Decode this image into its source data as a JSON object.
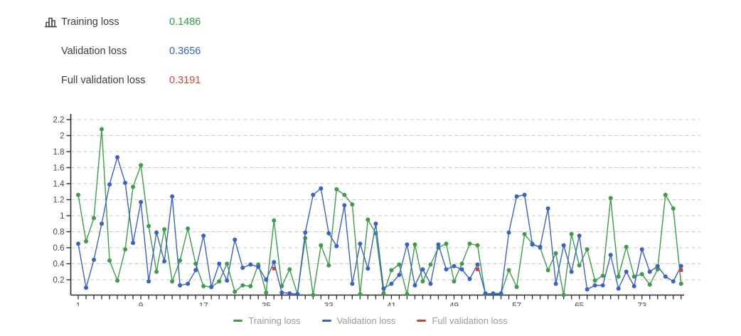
{
  "header": {
    "metrics": [
      {
        "label": "Training loss",
        "value": "0.1486",
        "color": "#2f9e44"
      },
      {
        "label": "Validation loss",
        "value": "0.3656",
        "color": "#3a5fc8"
      },
      {
        "label": "Full validation loss",
        "value": "0.3191",
        "color": "#d14836"
      }
    ]
  },
  "legend": {
    "items": [
      {
        "label": "Training loss",
        "color": "#3f9c4a"
      },
      {
        "label": "Validation loss",
        "color": "#3a62c4"
      },
      {
        "label": "Full validation loss",
        "color": "#cc4437"
      }
    ]
  },
  "chart_data": {
    "type": "line",
    "title": "",
    "xlabel": "",
    "ylabel": "",
    "x_range": [
      1,
      78
    ],
    "x_tick_step": 1,
    "x_tick_labels": [
      1,
      9,
      17,
      25,
      33,
      41,
      49,
      57,
      65,
      73
    ],
    "yticks": [
      0.2,
      0.4,
      0.6,
      0.8,
      1,
      1.2,
      1.4,
      1.6,
      1.8,
      2,
      2.2
    ],
    "ylim": [
      0.0,
      2.28
    ],
    "grid": "horizontal-dashed",
    "legend_position": "bottom-center",
    "series": [
      {
        "name": "Training loss",
        "color": "#3f9c4a",
        "marker": "circle",
        "x_start": 1,
        "values": [
          1.26,
          0.68,
          0.97,
          2.08,
          0.44,
          0.19,
          0.58,
          1.36,
          1.63,
          0.87,
          0.3,
          0.83,
          0.18,
          0.44,
          0.84,
          0.4,
          0.12,
          0.11,
          0.18,
          0.4,
          0.05,
          0.13,
          0.12,
          0.39,
          0.04,
          0.94,
          0.12,
          0.33,
          0.02,
          0.72,
          0.01,
          0.63,
          0.38,
          1.33,
          1.26,
          1.14,
          0.02,
          0.95,
          0.78,
          0.03,
          0.32,
          0.39,
          0.02,
          0.64,
          0.18,
          0.39,
          0.6,
          0.65,
          0.18,
          0.4,
          0.65,
          0.63,
          0.02,
          0.03,
          0.03,
          0.32,
          0.11,
          0.77,
          0.65,
          0.6,
          0.32,
          0.53,
          0.01,
          0.77,
          0.38,
          0.58,
          0.19,
          0.25,
          1.22,
          0.24,
          0.61,
          0.24,
          0.27,
          0.14,
          0.33,
          1.26,
          1.09,
          0.15
        ]
      },
      {
        "name": "Validation loss",
        "color": "#3a62c4",
        "marker": "circle",
        "x_start": 1,
        "values": [
          0.65,
          0.1,
          0.45,
          0.9,
          1.39,
          1.73,
          1.41,
          0.66,
          1.17,
          0.18,
          0.79,
          0.43,
          1.24,
          0.13,
          0.15,
          0.32,
          0.75,
          0.11,
          0.4,
          0.19,
          0.7,
          0.35,
          0.39,
          0.36,
          0.2,
          0.42,
          0.04,
          0.03,
          0.02,
          0.79,
          1.26,
          1.34,
          0.78,
          0.62,
          1.13,
          0.15,
          0.65,
          0.34,
          0.9,
          0.09,
          0.15,
          0.26,
          0.64,
          0.13,
          0.33,
          0.15,
          0.64,
          0.33,
          0.37,
          0.33,
          0.21,
          0.39,
          0.03,
          0.02,
          0.02,
          0.79,
          1.24,
          1.26,
          0.64,
          0.61,
          1.09,
          0.15,
          0.63,
          0.3,
          0.75,
          0.08,
          0.13,
          0.13,
          0.51,
          0.09,
          0.3,
          0.12,
          0.58,
          0.3,
          0.37,
          0.24,
          0.18,
          0.37
        ]
      },
      {
        "name": "Full validation loss",
        "color": "#cc4437",
        "marker": "square",
        "points_x": [
          26,
          52,
          78
        ],
        "values": [
          0.34,
          0.33,
          0.32
        ]
      }
    ]
  },
  "style": {
    "axis_color": "#2e2e2e",
    "grid_color": "#c9c9c9",
    "tick_label_color": "#4a4a4a"
  }
}
